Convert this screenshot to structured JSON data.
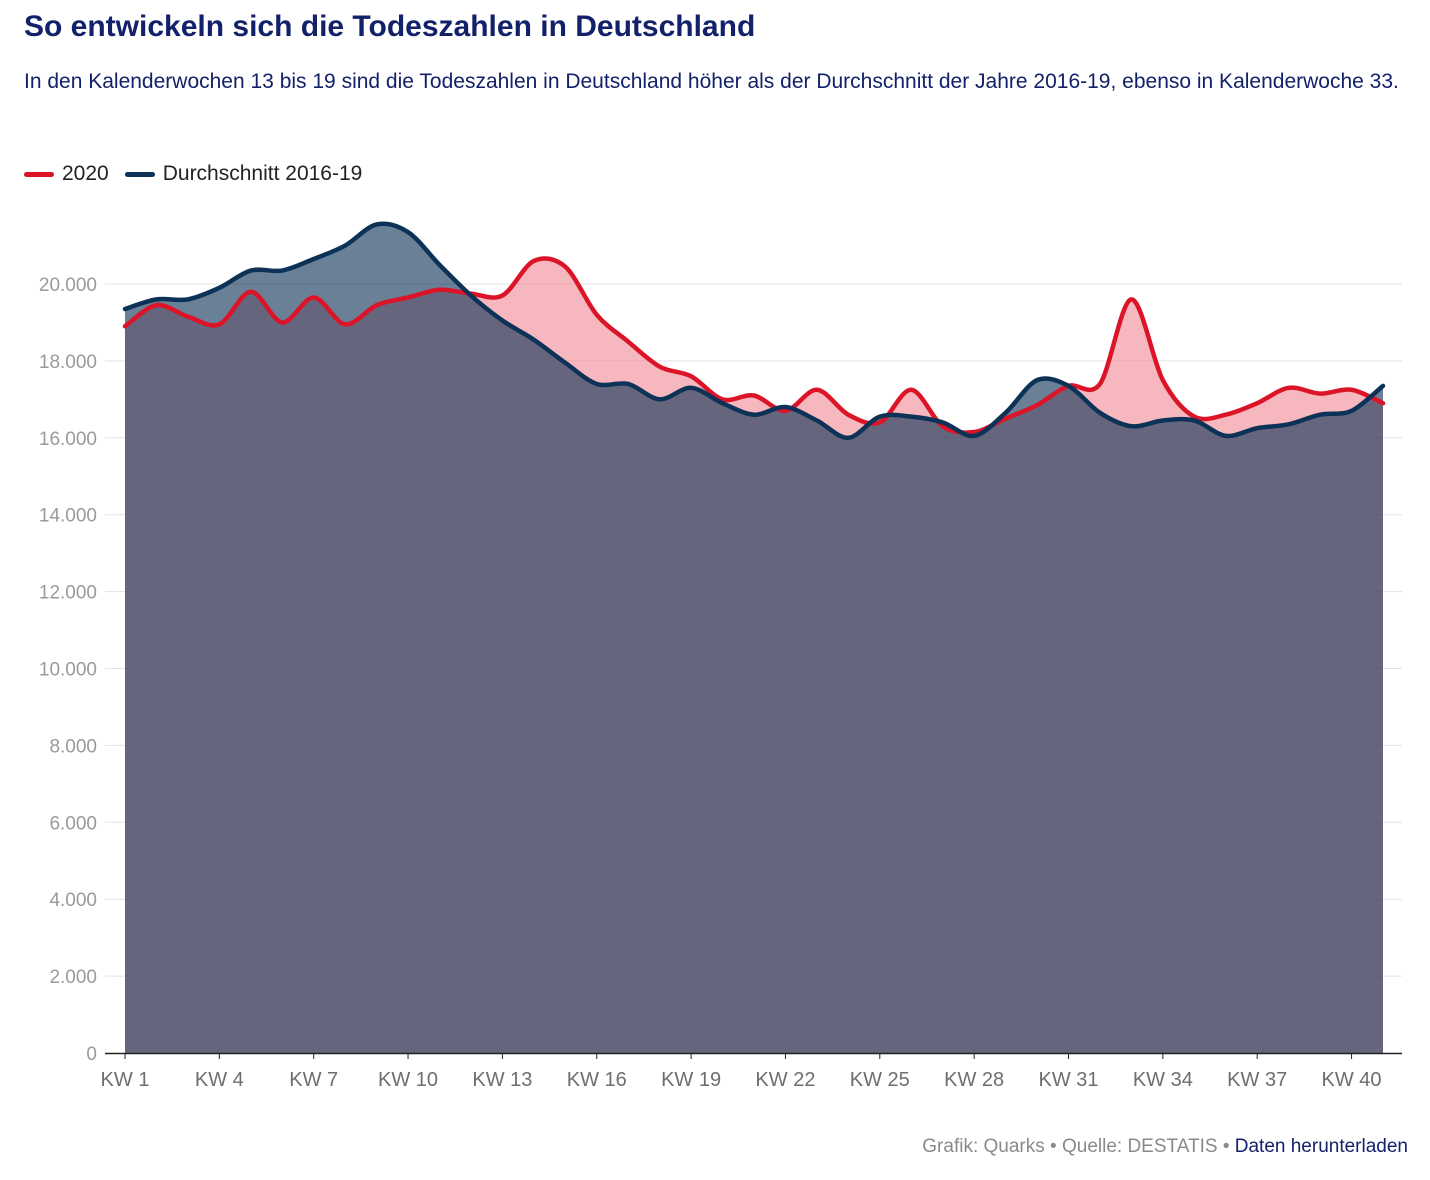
{
  "header": {
    "title": "So entwickeln sich die Todeszahlen in Deutschland",
    "subtitle": "In den Kalenderwochen 13 bis 19 sind die Todeszahlen in Deutschland höher als der Durchschnitt der Jahre 2016-19, ebenso in Kalenderwoche 33."
  },
  "legend": [
    {
      "label": "2020",
      "color": "#dc1428"
    },
    {
      "label": "Durchschnitt 2016-19",
      "color": "#0d3257"
    }
  ],
  "footer": {
    "credit": "Grafik: Quarks",
    "separator": "•",
    "source": "Quelle: DESTATIS",
    "download": "Daten herunterladen"
  },
  "chart_data": {
    "type": "area",
    "title": "",
    "xlabel": "",
    "ylabel": "",
    "ylim": [
      0,
      20000
    ],
    "y_ticks": [
      0,
      2000,
      4000,
      6000,
      8000,
      10000,
      12000,
      14000,
      16000,
      18000,
      20000
    ],
    "y_tick_labels": [
      "0",
      "2.000",
      "4.000",
      "6.000",
      "8.000",
      "10.000",
      "12.000",
      "14.000",
      "16.000",
      "18.000",
      "20.000"
    ],
    "x_ticks": [
      "KW 1",
      "KW 4",
      "KW 7",
      "KW 10",
      "KW 13",
      "KW 16",
      "KW 19",
      "KW 22",
      "KW 25",
      "KW 28",
      "KW 31",
      "KW 34",
      "KW 37",
      "KW 40"
    ],
    "grid": true,
    "legend_position": "top-left",
    "series": [
      {
        "name": "2020",
        "color": "#dc1428",
        "x": [
          1,
          2,
          3,
          4,
          5,
          6,
          7,
          8,
          9,
          10,
          11,
          12,
          13,
          14,
          15,
          16,
          17,
          18,
          19,
          20,
          21,
          22,
          23,
          24,
          25,
          26,
          27,
          28,
          29,
          30,
          31,
          32,
          33,
          34,
          35,
          36,
          37,
          38,
          39,
          40,
          41
        ],
        "values": [
          18900,
          19450,
          19150,
          18950,
          19800,
          19000,
          19650,
          18950,
          19450,
          19650,
          19850,
          19750,
          19700,
          20600,
          20450,
          19200,
          18500,
          17850,
          17600,
          17000,
          17100,
          16700,
          17250,
          16600,
          16400,
          17250,
          16300,
          16150,
          16500,
          16850,
          17350,
          17400,
          19600,
          17500,
          16550,
          16600,
          16900,
          17300,
          17150,
          17250,
          16900
        ]
      },
      {
        "name": "Durchschnitt 2016-19",
        "color": "#0d3257",
        "x": [
          1,
          2,
          3,
          4,
          5,
          6,
          7,
          8,
          9,
          10,
          11,
          12,
          13,
          14,
          15,
          16,
          17,
          18,
          19,
          20,
          21,
          22,
          23,
          24,
          25,
          26,
          27,
          28,
          29,
          30,
          31,
          32,
          33,
          34,
          35,
          36,
          37,
          38,
          39,
          40,
          41
        ],
        "values": [
          19350,
          19600,
          19600,
          19900,
          20350,
          20350,
          20650,
          21000,
          21550,
          21350,
          20500,
          19700,
          19050,
          18550,
          17950,
          17400,
          17400,
          17000,
          17300,
          16900,
          16600,
          16800,
          16450,
          16000,
          16550,
          16550,
          16400,
          16050,
          16650,
          17500,
          17350,
          16650,
          16300,
          16450,
          16450,
          16050,
          16250,
          16350,
          16600,
          16700,
          17350
        ]
      }
    ]
  }
}
